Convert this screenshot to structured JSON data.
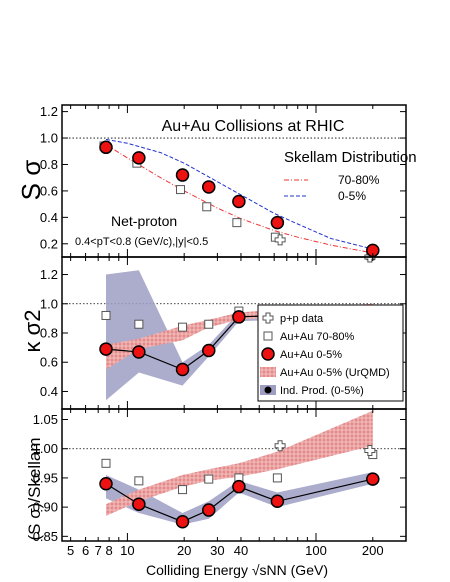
{
  "chart_data": [
    {
      "type": "scatter",
      "panel": "top",
      "title": "Au+Au Collisions at RHIC",
      "ylabel": "S σ",
      "xlabel": "Colliding Energy √sNN (GeV)",
      "x_scale": "log",
      "xlim": [
        4.5,
        300
      ],
      "ylim": [
        0.1,
        1.25
      ],
      "yticks": [
        "0.2",
        "0.4",
        "0.6",
        "0.8",
        "1.0",
        "1.2"
      ],
      "reference_line": 1.0,
      "annotations": [
        "Skellam Distribution",
        "Net-proton",
        "0.4<pT<0.8 (GeV/c),|y|<0.5"
      ],
      "series": [
        {
          "name": "Au+Au 0-5%",
          "x": [
            7.7,
            11.5,
            19.6,
            27,
            39,
            62.4,
            200
          ],
          "y": [
            0.93,
            0.85,
            0.72,
            0.63,
            0.52,
            0.36,
            0.15
          ]
        },
        {
          "name": "Au+Au 70-80%",
          "x": [
            7.7,
            11.5,
            19.6,
            27,
            39,
            62.4,
            200
          ],
          "y": [
            0.94,
            0.81,
            0.61,
            0.48,
            0.36,
            0.25,
            0.11
          ]
        },
        {
          "name": "p+p data",
          "x": [
            64.5,
            193
          ],
          "y": [
            0.23,
            0.1
          ]
        },
        {
          "name": "70-80%",
          "style": "dash-dot",
          "x": [
            7.7,
            10,
            15,
            20,
            30,
            40,
            60,
            80,
            120,
            200
          ],
          "y": [
            0.95,
            0.85,
            0.7,
            0.6,
            0.47,
            0.39,
            0.3,
            0.25,
            0.19,
            0.13
          ]
        },
        {
          "name": "0-5%",
          "style": "dashed",
          "x": [
            7.7,
            10,
            15,
            20,
            30,
            40,
            60,
            80,
            120,
            200
          ],
          "y": [
            0.99,
            0.96,
            0.89,
            0.81,
            0.67,
            0.57,
            0.43,
            0.35,
            0.24,
            0.16
          ]
        }
      ]
    },
    {
      "type": "scatter",
      "panel": "middle",
      "ylabel": "κ σ2",
      "x_scale": "log",
      "xlim": [
        4.5,
        300
      ],
      "ylim": [
        0.28,
        1.32
      ],
      "yticks": [
        "0.4",
        "0.6",
        "0.8",
        "1.0",
        "1.2"
      ],
      "reference_line": 1.0,
      "series": [
        {
          "name": "Au+Au 0-5%",
          "x": [
            7.7,
            11.5,
            19.6,
            27,
            39,
            62.4,
            200
          ],
          "y": [
            0.69,
            0.67,
            0.55,
            0.68,
            0.91,
            0.92,
            0.9
          ]
        },
        {
          "name": "Au+Au 70-80%",
          "x": [
            7.7,
            11.5,
            19.6,
            27,
            39,
            62.4,
            200
          ],
          "y": [
            0.92,
            0.86,
            0.84,
            0.86,
            0.95,
            0.93,
            0.87
          ]
        },
        {
          "name": "p+p data",
          "x": [
            64.5,
            193
          ],
          "y": [
            0.9,
            0.91
          ]
        },
        {
          "name": "Au+Au 0-5% (UrQMD)",
          "style": "band",
          "x": [
            7.7,
            11.5,
            19.6,
            27,
            39,
            62.4,
            200
          ],
          "lower": [
            0.55,
            0.69,
            0.75,
            0.84,
            0.89,
            0.91,
            0.95
          ],
          "upper": [
            0.72,
            0.76,
            0.85,
            0.89,
            0.94,
            0.96,
            1.0
          ]
        },
        {
          "name": "Ind. Prod. (0-5%)",
          "style": "band",
          "x": [
            7.7,
            11.5,
            19.6,
            27,
            39,
            62.4,
            200
          ],
          "lower": [
            0.34,
            0.53,
            0.44,
            0.64,
            0.88,
            0.89,
            0.88
          ],
          "upper": [
            1.2,
            1.23,
            0.6,
            0.72,
            0.94,
            0.93,
            0.91
          ]
        }
      ],
      "legend": [
        "p+p data",
        "Au+Au 70-80%",
        "Au+Au 0-5%",
        "Au+Au 0-5% (UrQMD)",
        "Ind. Prod. (0-5%)"
      ]
    },
    {
      "type": "scatter",
      "panel": "bottom",
      "ylabel": "(S σ)/Skellam",
      "xlabel": "Colliding Energy √sNN (GeV)",
      "x_scale": "log",
      "xlim": [
        4.5,
        300
      ],
      "ylim": [
        0.842,
        1.068
      ],
      "yticks": [
        "0.85",
        "0.90",
        "0.95",
        "1.00",
        "1.05"
      ],
      "xticks": [
        "5",
        "6",
        "7",
        "8",
        "10",
        "20",
        "30",
        "40",
        "100",
        "200"
      ],
      "reference_line": 1.0,
      "series": [
        {
          "name": "Au+Au 0-5%",
          "x": [
            7.7,
            11.5,
            19.6,
            27,
            39,
            62.4,
            200
          ],
          "y": [
            0.94,
            0.905,
            0.875,
            0.895,
            0.935,
            0.91,
            0.948
          ]
        },
        {
          "name": "Au+Au 70-80%",
          "x": [
            7.7,
            11.5,
            19.6,
            27,
            39,
            62.4,
            200
          ],
          "y": [
            0.975,
            0.945,
            0.93,
            0.948,
            0.95,
            0.95,
            0.99
          ]
        },
        {
          "name": "p+p data",
          "x": [
            64.5,
            193
          ],
          "y": [
            1.005,
            0.997
          ]
        },
        {
          "name": "Au+Au 0-5% (UrQMD)",
          "style": "band",
          "x": [
            7.7,
            11.5,
            19.6,
            27,
            39,
            62.4,
            200
          ],
          "lower": [
            0.885,
            0.91,
            0.935,
            0.945,
            0.952,
            0.965,
            1.005
          ],
          "upper": [
            0.905,
            0.93,
            0.955,
            0.965,
            0.975,
            0.995,
            1.065
          ]
        },
        {
          "name": "Ind. Prod. (0-5%)",
          "style": "band",
          "x": [
            7.7,
            11.5,
            19.6,
            27,
            39,
            62.4,
            200
          ],
          "lower": [
            0.915,
            0.89,
            0.87,
            0.88,
            0.925,
            0.9,
            0.94
          ],
          "upper": [
            0.955,
            0.93,
            0.89,
            0.91,
            0.945,
            0.925,
            0.96
          ]
        }
      ]
    }
  ]
}
